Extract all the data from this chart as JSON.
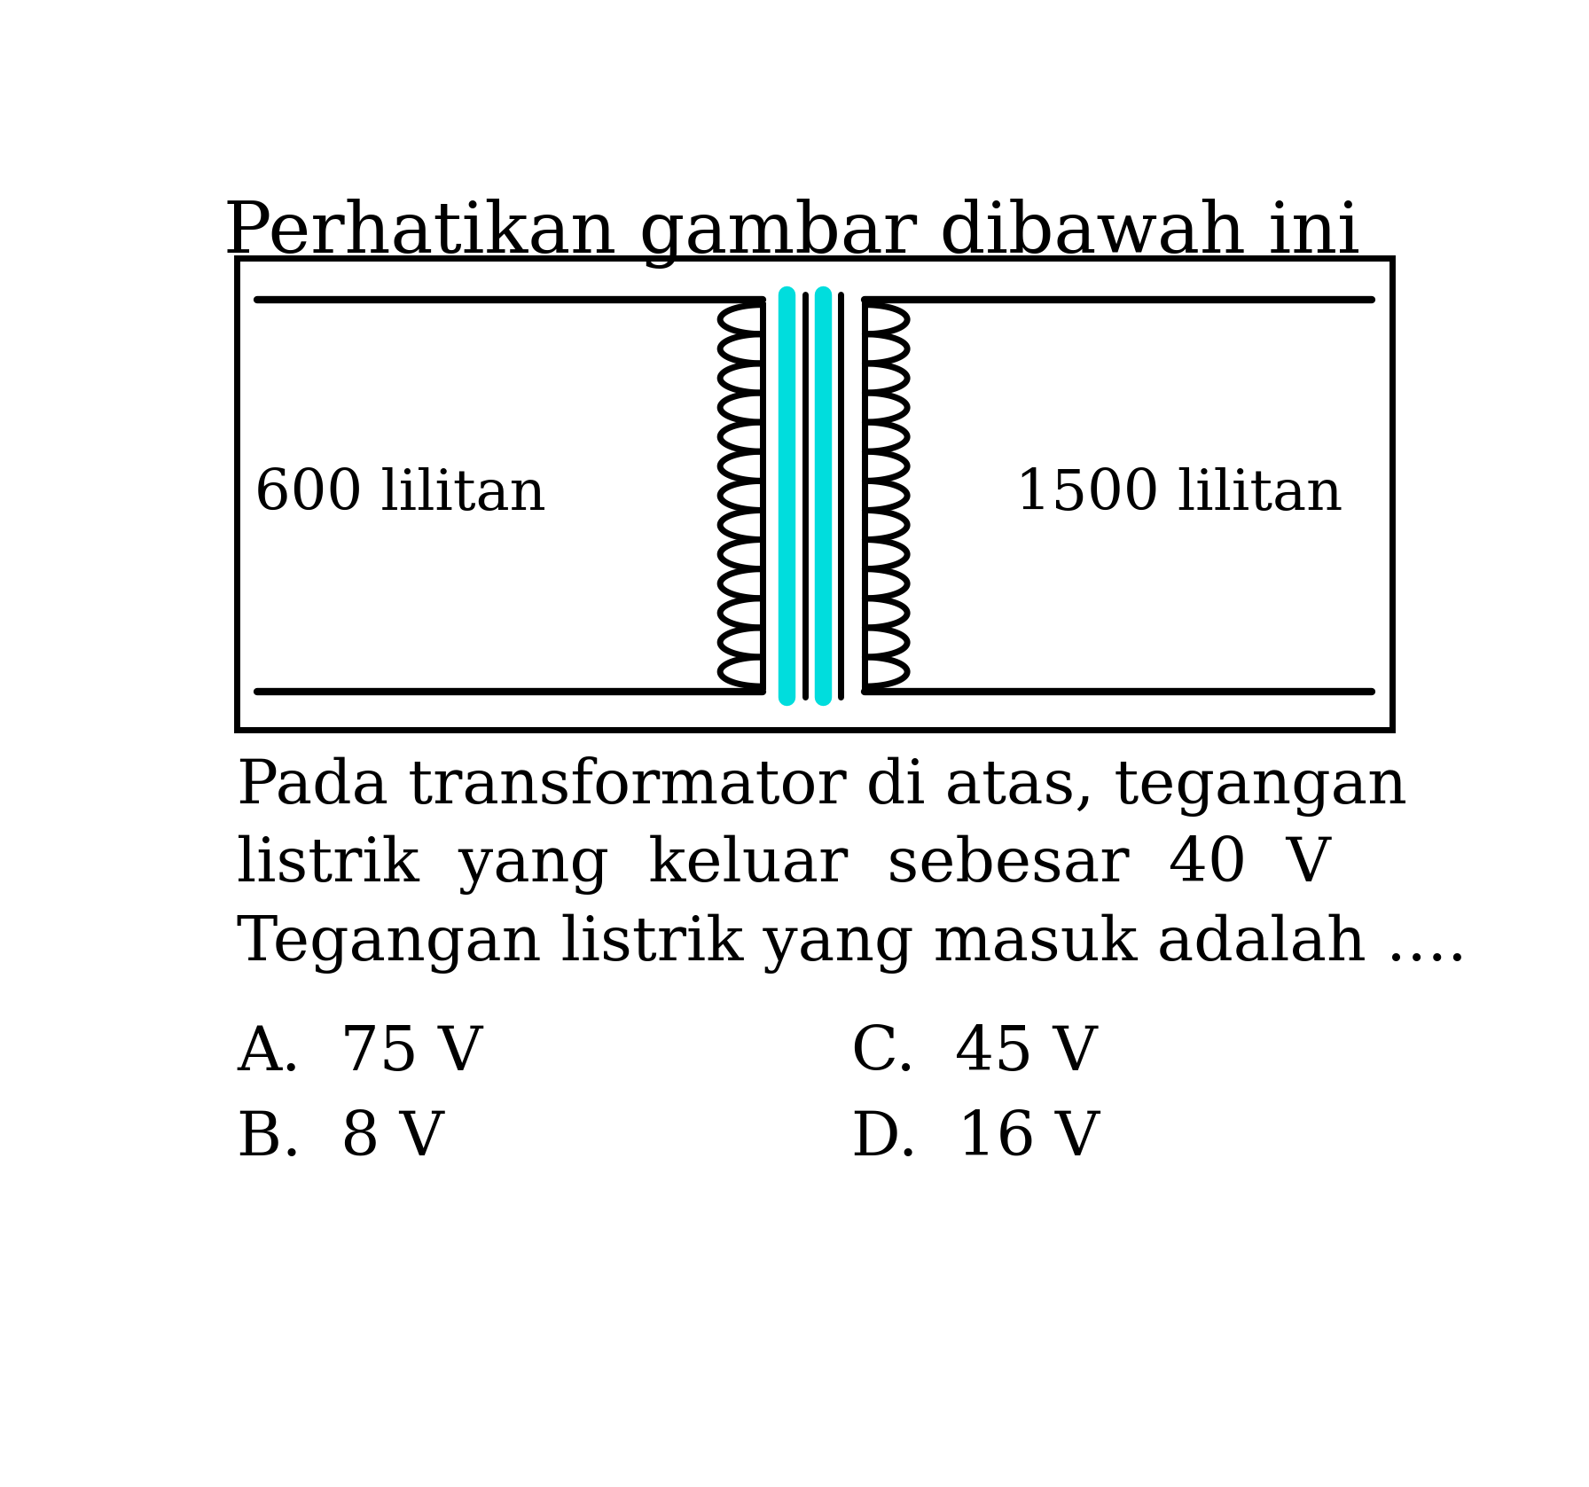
{
  "title": "Perhatikan gambar dibawah ini",
  "title_fontsize": 58,
  "left_label": "600 lilitan",
  "right_label": "1500 lilitan",
  "label_fontsize": 46,
  "question_line1": "Pada transformator di atas, tegangan",
  "question_line2": "listrik  yang  keluar  sebesar  40  V",
  "question_line3": "Tegangan listrik yang masuk adalah ….",
  "question_fontsize": 50,
  "option_A": "A.  75 V",
  "option_B": "B.  8 V",
  "option_C": "C.  45 V",
  "option_D": "D.  16 V",
  "option_fontsize": 50,
  "background_color": "#ffffff",
  "box_color": "#000000",
  "coil_color": "#000000",
  "core_cyan": "#00e5e5",
  "core_dark": "#000000"
}
